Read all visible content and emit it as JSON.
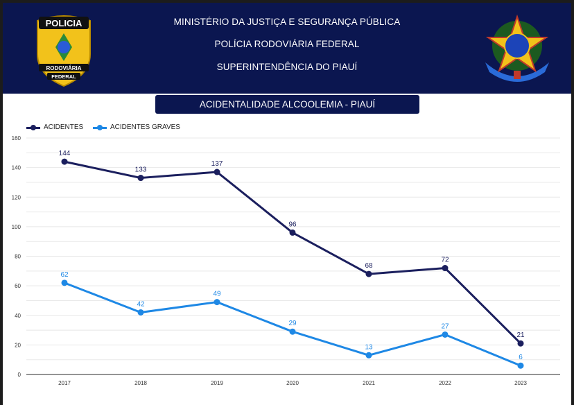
{
  "header": {
    "line1": "MINISTÉRIO DA JUSTIÇA E SEGURANÇA PÚBLICA",
    "line2": "POLÍCIA RODOVIÁRIA FEDERAL",
    "line3": "SUPERINTENDÊNCIA DO PIAUÍ",
    "badge_text_top": "POLICIA",
    "badge_text_mid": "RODOVIÁRIA",
    "badge_text_bottom": "FEDERAL",
    "left_logo": "prf-badge",
    "right_logo": "brazil-coat-of-arms"
  },
  "colors": {
    "header": "#0b1650",
    "acidentes": "#1b1f5e",
    "graves": "#1e88e5"
  },
  "chart_data": {
    "type": "line",
    "title": "ACIDENTALIDADE  ALCOOLEMIA - PIAUÍ",
    "categories": [
      "2017",
      "2018",
      "2019",
      "2020",
      "2021",
      "2022",
      "2023"
    ],
    "series": [
      {
        "name": "ACIDENTES",
        "values": [
          144,
          133,
          137,
          96,
          68,
          72,
          21
        ]
      },
      {
        "name": "ACIDENTES GRAVES",
        "values": [
          62,
          42,
          49,
          29,
          13,
          27,
          6
        ]
      }
    ],
    "ylim": [
      0,
      160
    ],
    "yticks": [
      0,
      20,
      40,
      60,
      80,
      100,
      120,
      140,
      160
    ],
    "grid": true,
    "legend": "top-left",
    "data_labels": true
  }
}
